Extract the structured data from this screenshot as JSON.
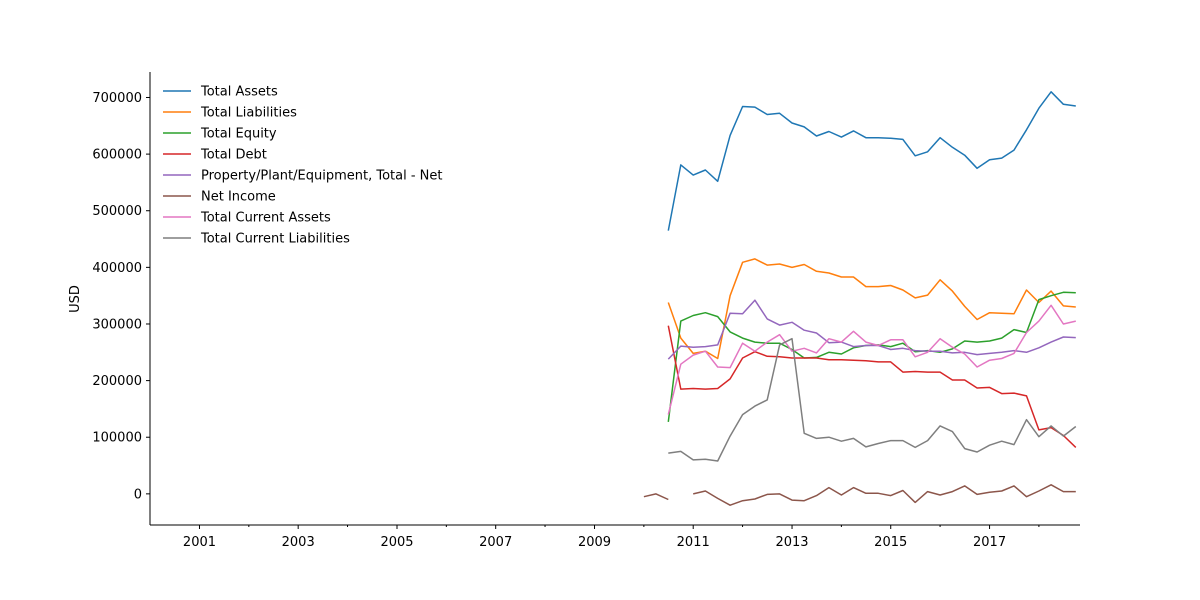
{
  "chart_data": {
    "type": "line",
    "title": "",
    "xlabel": "",
    "ylabel": "USD",
    "xlim": [
      "2000-01-01",
      "2018-11-01"
    ],
    "ylim": [
      -55000,
      745000
    ],
    "x_ticks": [
      "2001-01-01",
      "2003-01-01",
      "2005-01-01",
      "2007-01-01",
      "2009-01-01",
      "2011-01-01",
      "2013-01-01",
      "2015-01-01",
      "2017-01-01"
    ],
    "x_tick_labels": [
      "2001",
      "2003",
      "2005",
      "2007",
      "2009",
      "2011",
      "2013",
      "2015",
      "2017"
    ],
    "y_ticks": [
      0,
      100000,
      200000,
      300000,
      400000,
      500000,
      600000,
      700000
    ],
    "y_tick_labels": [
      "0",
      "100000",
      "200000",
      "300000",
      "400000",
      "500000",
      "600000",
      "700000"
    ],
    "grid": false,
    "legend_position": "top-left",
    "x": [
      "2010-07-01",
      "2010-10-01",
      "2011-01-01",
      "2011-04-01",
      "2011-07-01",
      "2011-10-01",
      "2012-01-01",
      "2012-04-01",
      "2012-07-01",
      "2012-10-01",
      "2013-01-01",
      "2013-04-01",
      "2013-07-01",
      "2013-10-01",
      "2014-01-01",
      "2014-04-01",
      "2014-07-01",
      "2014-10-01",
      "2015-01-01",
      "2015-04-01",
      "2015-07-01",
      "2015-10-01",
      "2016-01-01",
      "2016-04-01",
      "2016-07-01",
      "2016-10-01",
      "2017-01-01",
      "2017-04-01",
      "2017-07-01",
      "2017-10-01",
      "2018-01-01",
      "2018-04-01",
      "2018-07-01",
      "2018-10-01"
    ],
    "series": [
      {
        "name": "Total Assets",
        "color": "#1f77b4",
        "values": [
          465000,
          581000,
          563000,
          572000,
          552000,
          633000,
          684000,
          683000,
          670000,
          672000,
          655000,
          648000,
          632000,
          640000,
          630000,
          641000,
          629000,
          629000,
          628000,
          626000,
          597000,
          604000,
          629000,
          612000,
          598000,
          575000,
          590000,
          593000,
          607000,
          643000,
          681000,
          710000,
          688000,
          685000
        ]
      },
      {
        "name": "Total Liabilities",
        "color": "#ff7f0e",
        "values": [
          338000,
          275000,
          248000,
          252000,
          239000,
          350000,
          409000,
          415000,
          404000,
          406000,
          400000,
          405000,
          393000,
          390000,
          383000,
          383000,
          366000,
          366000,
          368000,
          360000,
          346000,
          351000,
          378000,
          358000,
          331000,
          308000,
          320000,
          319000,
          318000,
          360000,
          338000,
          358000,
          332000,
          330000
        ]
      },
      {
        "name": "Total Equity",
        "color": "#2ca02c",
        "values": [
          127000,
          305000,
          315000,
          320000,
          313000,
          286000,
          275000,
          268000,
          266000,
          266000,
          255000,
          240000,
          241000,
          250000,
          247000,
          258000,
          262000,
          263000,
          260000,
          266000,
          251000,
          253000,
          250000,
          256000,
          270000,
          268000,
          270000,
          275000,
          290000,
          285000,
          343000,
          350000,
          356000,
          355000
        ]
      },
      {
        "name": "Total Debt",
        "color": "#d62728",
        "values": [
          297000,
          185000,
          186000,
          185000,
          186000,
          203000,
          240000,
          251000,
          243000,
          242000,
          240000,
          240000,
          240000,
          237000,
          237000,
          236000,
          235000,
          233000,
          233000,
          215000,
          216000,
          215000,
          215000,
          201000,
          201000,
          187000,
          188000,
          177000,
          178000,
          173000,
          113000,
          117000,
          103000,
          82000
        ]
      },
      {
        "name": "Property/Plant/Equipment, Total - Net",
        "color": "#9467bd",
        "values": [
          238000,
          261000,
          259000,
          260000,
          263000,
          319000,
          318000,
          342000,
          309000,
          298000,
          303000,
          289000,
          284000,
          267000,
          268000,
          260000,
          262000,
          262000,
          255000,
          257000,
          253000,
          252000,
          252000,
          249000,
          250000,
          246000,
          248000,
          250000,
          253000,
          250000,
          258000,
          268000,
          277000,
          276000
        ]
      },
      {
        "name": "Net Income",
        "color": "#8c564b",
        "values": [
          -10000,
          null,
          0,
          5000,
          -8000,
          -20000,
          -12000,
          -9000,
          -1000,
          0,
          -11000,
          -12000,
          -3000,
          11000,
          -2000,
          11000,
          1000,
          1000,
          -3000,
          6000,
          -15000,
          4000,
          -2000,
          4000,
          14000,
          -1000,
          3000,
          5000,
          14000,
          -5000,
          5000,
          16000,
          4000,
          4000
        ]
      },
      {
        "name": "Total Current Assets",
        "color": "#e377c2",
        "values": [
          140000,
          229000,
          245000,
          252000,
          224000,
          223000,
          266000,
          252000,
          268000,
          281000,
          252000,
          257000,
          249000,
          274000,
          268000,
          287000,
          268000,
          262000,
          272000,
          272000,
          242000,
          250000,
          274000,
          259000,
          247000,
          224000,
          236000,
          239000,
          248000,
          285000,
          305000,
          333000,
          300000,
          305000
        ]
      },
      {
        "name": "Total Current Liabilities",
        "color": "#7f7f7f",
        "values": [
          72000,
          75000,
          60000,
          61000,
          58000,
          102000,
          140000,
          155000,
          166000,
          263000,
          274000,
          107000,
          98000,
          100000,
          93000,
          98000,
          83000,
          89000,
          94000,
          94000,
          82000,
          94000,
          120000,
          110000,
          80000,
          74000,
          86000,
          93000,
          87000,
          131000,
          101000,
          120000,
          102000,
          119000
        ]
      }
    ],
    "extra_points": {
      "series": "Net Income",
      "x": [
        "2010-01-01",
        "2010-04-01",
        "2010-07-01"
      ],
      "values": [
        -5000,
        0,
        -10000
      ]
    }
  }
}
